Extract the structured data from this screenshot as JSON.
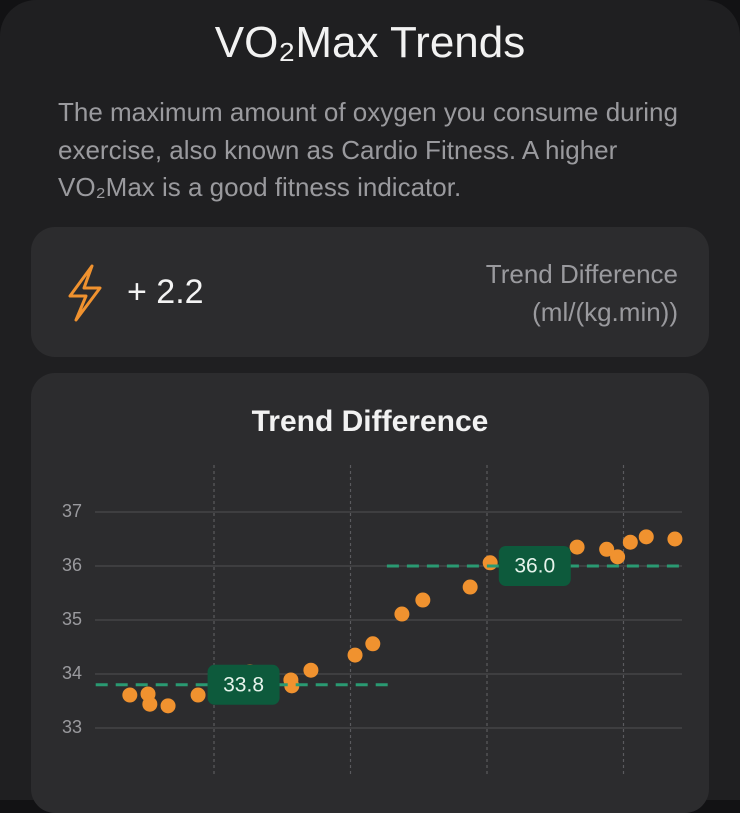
{
  "header": {
    "title": "VO₂Max Trends",
    "description": "The maximum amount of oxygen you consume during exercise, also known as Cardio Fitness. A higher VO₂Max is a good fitness indicator."
  },
  "summary": {
    "value": "+ 2.2",
    "label": "Trend Difference",
    "unit": "(ml/(kg.min))"
  },
  "chart_data": {
    "type": "scatter",
    "title": "Trend Difference",
    "x": [
      11.5,
      15.5,
      15.9,
      19.9,
      26.5,
      37.9,
      40.5,
      46.9,
      47.1,
      51.3,
      61.0,
      64.9,
      71.3,
      75.9,
      86.3,
      90.7,
      109.8,
      116.3,
      118.7,
      121.5,
      125.0,
      131.3
    ],
    "values": [
      33.61,
      33.63,
      33.44,
      33.41,
      33.61,
      34.04,
      34.0,
      33.89,
      33.78,
      34.07,
      34.35,
      34.56,
      35.11,
      35.37,
      35.61,
      36.06,
      36.35,
      36.31,
      36.17,
      36.44,
      36.54,
      36.5
    ],
    "color": "#f0922f",
    "xlim": [
      0,
      140
    ],
    "xticks": [
      30,
      60,
      90,
      120
    ],
    "ylim": [
      32.1,
      37.9
    ],
    "yticks": [
      33,
      34,
      35,
      36,
      37
    ],
    "grid": true,
    "trend_lines": {
      "values": [
        33.8,
        36.0
      ],
      "value_labels": [
        "33.8",
        "36.0"
      ],
      "x_start": [
        4,
        68
      ],
      "x_end": [
        69,
        133
      ],
      "color": "#2a9a72"
    }
  }
}
